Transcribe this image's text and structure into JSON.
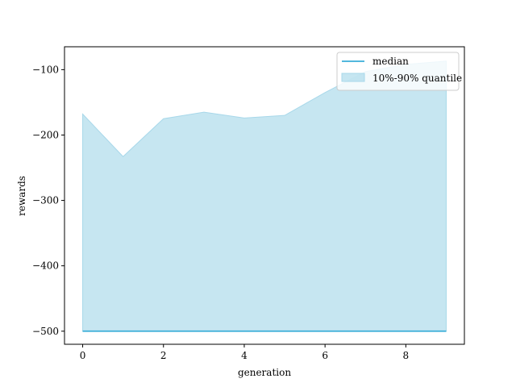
{
  "chart_data": {
    "type": "area",
    "xlabel": "generation",
    "ylabel": "rewards",
    "xlim": [
      -0.45,
      9.45
    ],
    "ylim": [
      -520,
      -65
    ],
    "xticks": [
      0,
      2,
      4,
      6,
      8
    ],
    "yticks": [
      -500,
      -400,
      -300,
      -200,
      -100
    ],
    "x": [
      0,
      1,
      2,
      3,
      4,
      5,
      6,
      7,
      8,
      9
    ],
    "series": [
      {
        "name": "median",
        "kind": "line",
        "color": "#3aaed8",
        "values": [
          -500,
          -500,
          -500,
          -500,
          -500,
          -500,
          -500,
          -500,
          -500,
          -500
        ]
      },
      {
        "name": "10%-90% quantile",
        "kind": "band",
        "color": "#a8d8ea",
        "lower": [
          -500,
          -500,
          -500,
          -500,
          -500,
          -500,
          -500,
          -500,
          -500,
          -500
        ],
        "upper": [
          -168,
          -233,
          -175,
          -165,
          -174,
          -170,
          -135,
          -103,
          -92,
          -87
        ]
      }
    ],
    "legend": {
      "placement": "top-right",
      "entries": [
        "median",
        "10%-90% quantile"
      ]
    },
    "grid": false
  }
}
